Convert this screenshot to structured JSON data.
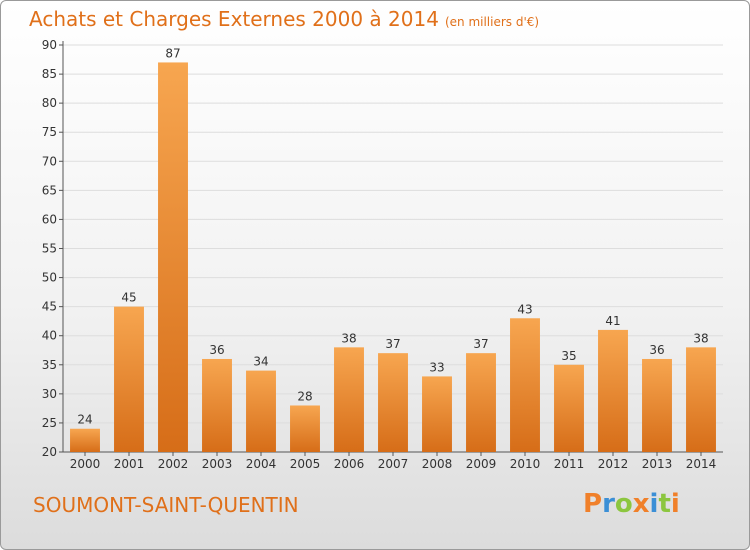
{
  "header": {
    "title": "Achats et Charges Externes 2000 à 2014",
    "subtitle": "(en milliers d'€)"
  },
  "footer": {
    "place": "SOUMONT-SAINT-QUENTIN",
    "logo": "Proxiti"
  },
  "colors": {
    "accent": "#e0701a",
    "bar_light": "#f7a650",
    "bar_dark": "#d66d18",
    "logo_letters": [
      "#f0802a",
      "#3b8fd6",
      "#8cc63f",
      "#f0802a",
      "#3b8fd6",
      "#8cc63f",
      "#f0802a"
    ]
  },
  "chart_data": {
    "type": "bar",
    "categories": [
      "2000",
      "2001",
      "2002",
      "2003",
      "2004",
      "2005",
      "2006",
      "2007",
      "2008",
      "2009",
      "2010",
      "2011",
      "2012",
      "2013",
      "2014"
    ],
    "values": [
      24,
      45,
      87,
      36,
      34,
      28,
      38,
      37,
      33,
      37,
      43,
      35,
      41,
      36,
      38
    ],
    "ylim": [
      20,
      90
    ],
    "yticks": [
      20,
      25,
      30,
      35,
      40,
      45,
      50,
      55,
      60,
      65,
      70,
      75,
      80,
      85,
      90
    ],
    "grid": true,
    "data_labels": true
  }
}
